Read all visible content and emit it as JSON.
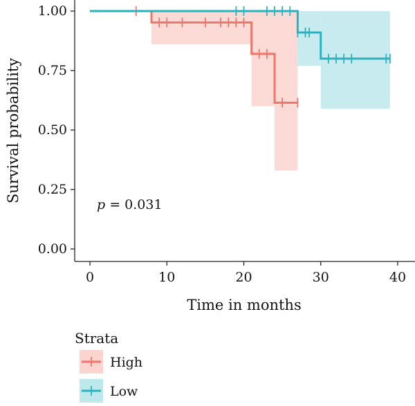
{
  "chart_data": {
    "type": "line",
    "subtype": "kaplan-meier-survival",
    "title": "",
    "xlabel": "Time in months",
    "ylabel": "Survival probability",
    "xlim": [
      0,
      40
    ],
    "ylim": [
      0,
      1
    ],
    "x_ticks": [
      0,
      10,
      20,
      30,
      40
    ],
    "x_tick_labels": [
      "0",
      "10",
      "20",
      "30",
      "40"
    ],
    "y_ticks": [
      0,
      0.25,
      0.5,
      0.75,
      1.0
    ],
    "y_tick_labels": [
      "0.00",
      "0.25",
      "0.50",
      "0.75",
      "1.00"
    ],
    "grid": false,
    "annotation": {
      "italic": "p",
      "rest": " = 0.031",
      "x": 1,
      "y": 0.19
    },
    "legend": {
      "title": "Strata",
      "position": "bottom-left"
    },
    "series": [
      {
        "name": "High",
        "color": "#f0766c",
        "fill": "#fbd3cf",
        "steps": [
          [
            0,
            1.0
          ],
          [
            8,
            0.952
          ],
          [
            21,
            0.82
          ],
          [
            24,
            0.615
          ],
          [
            27,
            0.615
          ]
        ],
        "ci_steps": [
          [
            0,
            1.0,
            1.0
          ],
          [
            8,
            0.86,
            1.0
          ],
          [
            21,
            0.6,
            1.0
          ],
          [
            24,
            0.33,
            1.0
          ],
          [
            27,
            0.33,
            1.0
          ]
        ],
        "censor": [
          6,
          9,
          10,
          12,
          15,
          17,
          18,
          19,
          20,
          22,
          23,
          25,
          27
        ]
      },
      {
        "name": "Low",
        "color": "#2ab3bf",
        "fill": "#bde8ec",
        "steps": [
          [
            0,
            1.0
          ],
          [
            27,
            0.91
          ],
          [
            30,
            0.8
          ],
          [
            39,
            0.8
          ]
        ],
        "ci_steps": [
          [
            0,
            1.0,
            1.0
          ],
          [
            27,
            0.77,
            1.0
          ],
          [
            30,
            0.59,
            1.0
          ],
          [
            39,
            0.59,
            1.0
          ]
        ],
        "censor": [
          19,
          20,
          23,
          24,
          25,
          26,
          27,
          28,
          28.5,
          31,
          32,
          33,
          34,
          38.5,
          39
        ]
      }
    ]
  }
}
